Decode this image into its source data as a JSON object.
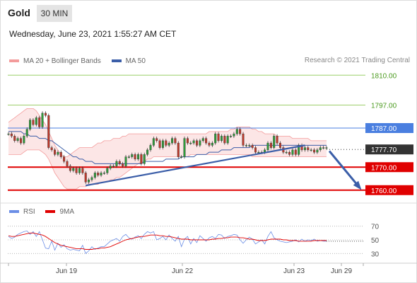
{
  "header": {
    "title": "Gold",
    "timeframe": "30 MIN"
  },
  "datetime": "Wednesday, June 23, 2021 1:55:27 AM CET",
  "legend": {
    "bb_label": "MA 20 + Bollinger Bands",
    "ma50_label": "MA 50",
    "copyright": "Research © 2021 Trading Central",
    "rsi_label": "RSI",
    "rsi_ma_label": "9MA"
  },
  "colors": {
    "bollinger": "#f39b9b",
    "ma50": "#3b5ea8",
    "resistance_green": "#9ccf6a",
    "resistance_blue": "#4a7fe0",
    "support_red": "#e00000",
    "current": "#333333",
    "bull_candle": "#2e9c3a",
    "bear_candle": "#c0392b",
    "rsi": "#6b8ee6",
    "rsi_ma": "#e00000"
  },
  "chart_data": {
    "type": "candlestick",
    "ylim": [
      1755,
      1815
    ],
    "x_tick_labels": [
      "Jun 19",
      "Jun 22",
      "Jun 23",
      "Jun 29"
    ],
    "levels": [
      {
        "value": 1810.0,
        "label": "1810.00",
        "kind": "green"
      },
      {
        "value": 1797.0,
        "label": "1797.00",
        "kind": "green"
      },
      {
        "value": 1787.0,
        "label": "1787.00",
        "kind": "blue"
      },
      {
        "value": 1777.7,
        "label": "1777.70",
        "kind": "current"
      },
      {
        "value": 1770.0,
        "label": "1770.00",
        "kind": "red"
      },
      {
        "value": 1760.0,
        "label": "1760.00",
        "kind": "red"
      }
    ],
    "close": [
      1784.5,
      1783.5,
      1781.5,
      1782.5,
      1780.5,
      1783.5,
      1786.5,
      1790.5,
      1788.5,
      1791.5,
      1787.5,
      1793.5,
      1792.5,
      1778.5,
      1777.5,
      1775.5,
      1776.5,
      1774.5,
      1772.5,
      1770.5,
      1768.5,
      1769.5,
      1767.5,
      1769.5,
      1767.5,
      1763.5,
      1764.5,
      1765.5,
      1767.5,
      1766.5,
      1767.5,
      1767.5,
      1769.5,
      1770.5,
      1770.5,
      1772.5,
      1771.5,
      1770.5,
      1774.5,
      1774.5,
      1775.5,
      1773.5,
      1775.5,
      1771.5,
      1775.5,
      1777.5,
      1779.5,
      1782.5,
      1781.5,
      1778.5,
      1781.5,
      1779.5,
      1780.5,
      1782.5,
      1780.5,
      1774.5,
      1774.5,
      1782.5,
      1780.5,
      1780.5,
      1781.5,
      1779.5,
      1781.5,
      1782.5,
      1780.5,
      1779.5,
      1780.5,
      1784.5,
      1781.5,
      1783.5,
      1780.5,
      1783.5,
      1783.5,
      1784.5,
      1786.5,
      1784.5,
      1779.5,
      1779.5,
      1779.5,
      1778.5,
      1776.5,
      1776.5,
      1776.5,
      1777.5,
      1780.5,
      1778.5,
      1783.5,
      1780.5,
      1778.5,
      1776.5,
      1776.5,
      1775.5,
      1777.5,
      1775.5,
      1779.5,
      1777.5,
      1778.5,
      1777.5,
      1777.5,
      1776.5,
      1777.5,
      1778.5,
      1778.5,
      1778.5
    ],
    "bb_upper": [
      1789.5,
      1790.5,
      1791.5,
      1792.5,
      1793.5,
      1794.5,
      1795.5,
      1795.5,
      1795.5,
      1794.5,
      1792.5,
      1790.5,
      1788.5,
      1785.5,
      1782.5,
      1779.5,
      1777.5,
      1775.5,
      1774.5,
      1774.5,
      1775.5,
      1776.5,
      1777.5,
      1778.5,
      1778.5,
      1778.5,
      1778.5,
      1778.5,
      1779.5,
      1780.5,
      1780.5,
      1781.5,
      1781.5,
      1781.5,
      1782.5,
      1782.5,
      1782.5,
      1783.5,
      1783.5,
      1784.5,
      1784.5,
      1784.5,
      1784.5,
      1784.5,
      1784.5,
      1784.5,
      1784.5,
      1784.5,
      1784.5,
      1784.5,
      1784.5,
      1784.5,
      1784.5,
      1784.5,
      1784.5,
      1784.5,
      1784.5,
      1784.5,
      1784.5,
      1784.5,
      1784.5,
      1784.5,
      1784.5,
      1784.5,
      1784.5,
      1785.5,
      1785.5,
      1785.5,
      1785.5,
      1785.5,
      1785.5,
      1785.5,
      1786.5,
      1786.5,
      1787.5,
      1787.5,
      1787.5,
      1787.5,
      1787.5,
      1786.5,
      1786.5,
      1785.5,
      1785.5,
      1784.5,
      1784.5,
      1784.5,
      1784.5,
      1783.5,
      1783.5,
      1783.5,
      1783.5,
      1783.5,
      1782.5,
      1782.5,
      1782.5,
      1782.5,
      1782.5,
      1782.5,
      1781.5,
      1781.5,
      1781.5,
      1781.5,
      1781.5,
      1781.5
    ],
    "bb_lower": [
      1775.5,
      1775.5,
      1775.5,
      1775.5,
      1775.5,
      1776.5,
      1777.5,
      1777.5,
      1777.5,
      1777.5,
      1777.5,
      1776.5,
      1775.5,
      1773.5,
      1770.5,
      1767.5,
      1765.5,
      1763.5,
      1761.5,
      1760.5,
      1760.5,
      1760.5,
      1760.5,
      1761.5,
      1761.5,
      1761.5,
      1762.5,
      1762.5,
      1762.5,
      1762.5,
      1763.5,
      1763.5,
      1763.5,
      1764.5,
      1764.5,
      1765.5,
      1765.5,
      1766.5,
      1767.5,
      1768.5,
      1769.5,
      1770.5,
      1771.5,
      1772.5,
      1772.5,
      1773.5,
      1773.5,
      1774.5,
      1774.5,
      1774.5,
      1774.5,
      1774.5,
      1774.5,
      1774.5,
      1774.5,
      1774.5,
      1774.5,
      1774.5,
      1774.5,
      1775.5,
      1775.5,
      1775.5,
      1775.5,
      1775.5,
      1775.5,
      1775.5,
      1775.5,
      1775.5,
      1775.5,
      1775.5,
      1775.5,
      1775.5,
      1775.5,
      1775.5,
      1775.5,
      1775.5,
      1775.5,
      1775.5,
      1775.5,
      1774.5,
      1774.5,
      1774.5,
      1774.5,
      1774.5,
      1774.5,
      1774.5,
      1774.5,
      1774.5,
      1774.5,
      1774.5,
      1774.5,
      1774.5,
      1774.5,
      1774.5,
      1774.5,
      1774.5,
      1774.5,
      1774.5,
      1774.5,
      1774.5,
      1774.5,
      1774.5,
      1774.5,
      1774.5
    ],
    "ma50": [
      1785.5,
      1785.5,
      1785.5,
      1785.5,
      1785.5,
      1784.5,
      1784.5,
      1783.5,
      1783.5,
      1783.5,
      1782.5,
      1782.5,
      1782.5,
      1781.5,
      1781.5,
      1780.5,
      1779.5,
      1778.5,
      1777.5,
      1776.5,
      1775.5,
      1774.5,
      1774.5,
      1773.5,
      1773.5,
      1772.5,
      1772.5,
      1772.5,
      1771.5,
      1771.5,
      1771.5,
      1771.5,
      1771.5,
      1771.5,
      1771.5,
      1771.5,
      1771.5,
      1771.5,
      1771.5,
      1771.5,
      1771.5,
      1771.5,
      1771.5,
      1771.5,
      1772.5,
      1772.5,
      1772.5,
      1772.5,
      1772.5,
      1772.5,
      1772.5,
      1773.5,
      1773.5,
      1773.5,
      1773.5,
      1773.5,
      1774.5,
      1774.5,
      1774.5,
      1774.5,
      1774.5,
      1775.5,
      1775.5,
      1775.5,
      1775.5,
      1776.5,
      1776.5,
      1776.5,
      1776.5,
      1777.5,
      1777.5,
      1777.5,
      1777.5,
      1778.5,
      1778.5,
      1778.5,
      1778.5,
      1778.5,
      1778.5,
      1779.5,
      1779.5,
      1779.5,
      1779.5,
      1779.5,
      1779.5,
      1779.5,
      1779.5,
      1779.5,
      1779.5,
      1779.5,
      1779.5,
      1779.5,
      1779.5,
      1779.5,
      1779.5,
      1779.5,
      1779.5,
      1779.5,
      1779.5,
      1779.5,
      1779.5,
      1779.5,
      1779.5,
      1779.5
    ],
    "trendline": {
      "start": 1762.0,
      "end": 1779.5
    },
    "forecast_arrow": {
      "start": 1777.0,
      "end": 1761.0
    },
    "rsi_ticks": [
      70,
      50,
      30
    ],
    "rsi_ylim": [
      20,
      80
    ],
    "rsi": [
      55,
      52,
      54,
      58,
      60,
      62,
      63,
      58,
      62,
      55,
      62,
      50,
      38,
      37,
      48,
      35,
      45,
      39,
      43,
      37,
      35,
      36,
      35,
      34,
      42,
      30,
      34,
      40,
      36,
      38,
      40,
      40,
      44,
      48,
      50,
      52,
      48,
      55,
      58,
      53,
      51,
      54,
      56,
      52,
      58,
      62,
      60,
      62,
      50,
      52,
      55,
      50,
      57,
      52,
      48,
      55,
      40,
      51,
      55,
      44,
      52,
      46,
      56,
      52,
      48,
      53,
      55,
      52,
      58,
      57,
      52,
      55,
      56,
      58,
      57,
      50,
      45,
      50,
      54,
      51,
      44,
      47,
      50,
      44,
      55,
      62,
      53,
      50,
      48,
      47,
      46,
      47,
      48,
      50,
      47,
      51,
      48,
      50,
      49,
      51,
      48,
      49,
      48,
      48
    ],
    "rsi_ma": [
      56,
      55,
      55,
      56,
      57,
      58,
      59,
      60,
      60,
      59,
      58,
      57,
      55,
      52,
      49,
      46,
      44,
      42,
      41,
      40,
      39,
      38,
      37,
      37,
      37,
      36,
      36,
      36,
      37,
      37,
      38,
      38,
      39,
      40,
      42,
      44,
      46,
      48,
      50,
      51,
      52,
      53,
      54,
      55,
      55,
      56,
      57,
      57,
      57,
      56,
      56,
      55,
      55,
      54,
      53,
      52,
      51,
      51,
      51,
      50,
      50,
      50,
      50,
      50,
      50,
      50,
      51,
      51,
      52,
      52,
      53,
      53,
      54,
      54,
      54,
      53,
      53,
      52,
      51,
      51,
      50,
      49,
      49,
      49,
      50,
      51,
      51,
      51,
      51,
      50,
      50,
      49,
      49,
      49,
      48,
      48,
      48,
      48,
      48,
      49,
      49,
      49,
      49,
      49
    ]
  }
}
